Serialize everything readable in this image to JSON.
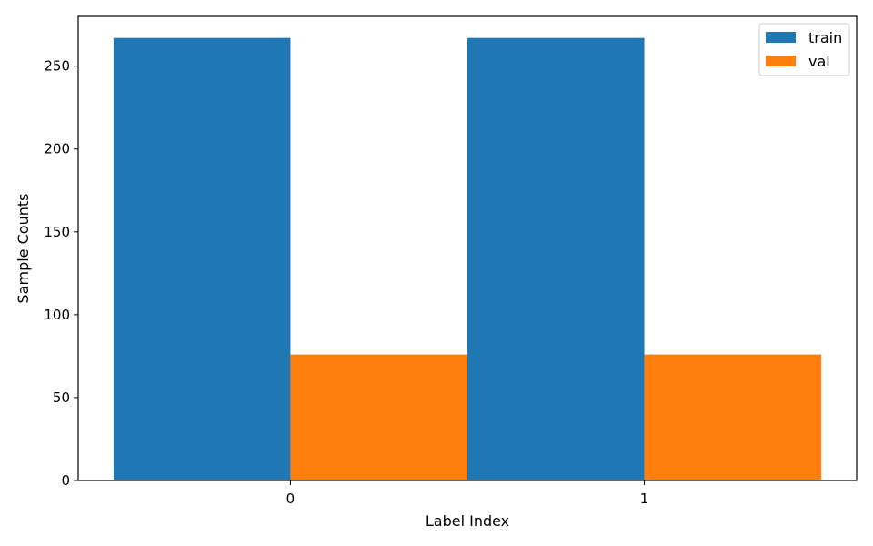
{
  "chart_data": {
    "type": "bar",
    "title": "",
    "xlabel": "Label Index",
    "ylabel": "Sample Counts",
    "categories": [
      "0",
      "1"
    ],
    "series": [
      {
        "name": "train",
        "color": "#1f77b4",
        "values": [
          267,
          267
        ]
      },
      {
        "name": "val",
        "color": "#ff7f0e",
        "values": [
          76,
          76
        ]
      }
    ],
    "ylim": [
      0,
      280
    ],
    "yticks": [
      0,
      50,
      100,
      150,
      200,
      250
    ],
    "grid": false,
    "legend": "top-right"
  }
}
